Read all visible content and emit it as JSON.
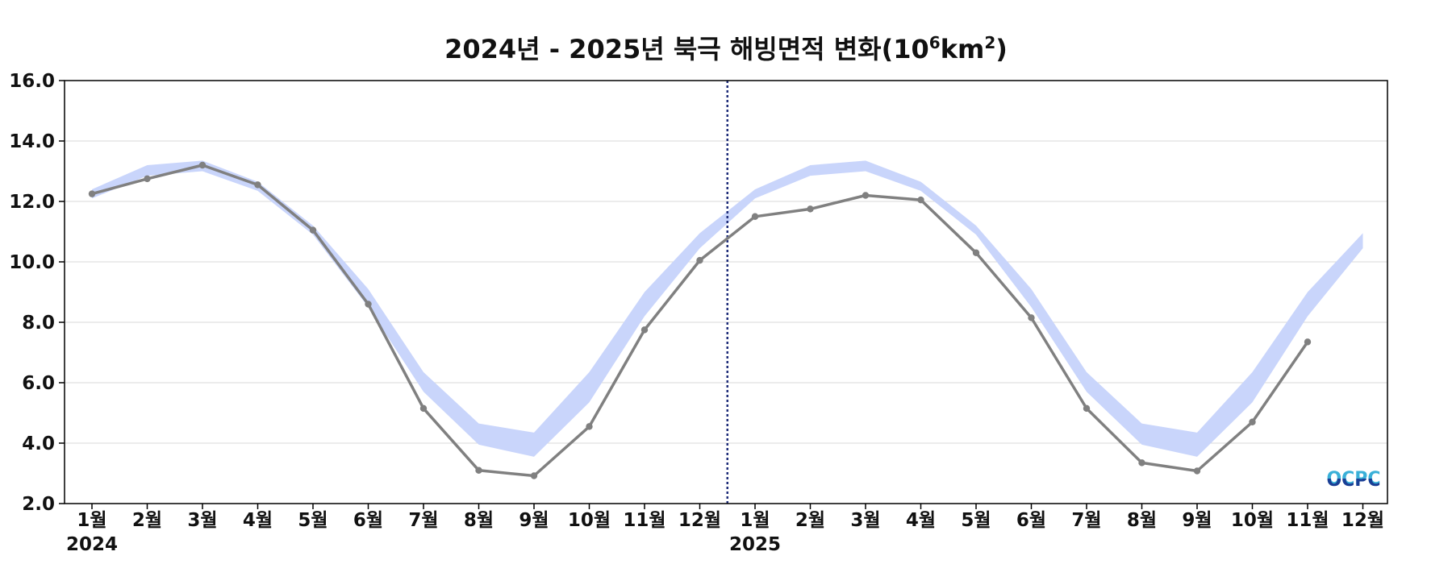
{
  "chart_data": {
    "type": "line",
    "title": {
      "text": "2024년 - 2025년 북극 해빙면적 변화(10",
      "exp1": "6",
      "unit": "km",
      "exp2": "2",
      "close": ")"
    },
    "ylim": [
      2.0,
      16.0
    ],
    "y_ticks": [
      "2.0",
      "4.0",
      "6.0",
      "8.0",
      "10.0",
      "12.0",
      "14.0",
      "16.0"
    ],
    "x_tick_labels": [
      "1월",
      "2월",
      "3월",
      "4월",
      "5월",
      "6월",
      "7월",
      "8월",
      "9월",
      "10월",
      "11월",
      "12월",
      "1월",
      "2월",
      "3월",
      "4월",
      "5월",
      "6월",
      "7월",
      "8월",
      "9월",
      "10월",
      "11월",
      "12월"
    ],
    "year_labels": [
      {
        "text": "2024",
        "month_index": 0
      },
      {
        "text": "2025",
        "month_index": 12
      }
    ],
    "year_divider_month_index": 11.5,
    "grid": true,
    "range_band": {
      "upper": [
        12.4,
        13.2,
        13.35,
        12.65,
        11.2,
        9.1,
        6.35,
        4.65,
        4.35,
        6.35,
        9.0,
        10.95,
        12.4,
        13.2,
        13.35,
        12.65,
        11.2,
        9.1,
        6.35,
        4.65,
        4.35,
        6.35,
        9.0,
        10.95
      ],
      "lower": [
        12.1,
        12.85,
        13.0,
        12.35,
        10.9,
        8.5,
        5.7,
        3.95,
        3.55,
        5.35,
        8.2,
        10.45,
        12.1,
        12.85,
        13.0,
        12.35,
        10.9,
        8.5,
        5.7,
        3.95,
        3.55,
        5.35,
        8.2,
        10.45
      ],
      "color": "#c9d5fb"
    },
    "series": [
      {
        "values": [
          12.25,
          12.75,
          13.2,
          12.55,
          11.05,
          8.6,
          5.15,
          3.1,
          2.92,
          4.55,
          7.75,
          10.05,
          11.5,
          11.75,
          12.2,
          12.05,
          10.3,
          8.15,
          5.15,
          3.35,
          3.08,
          4.7,
          7.35
        ],
        "color": "#808080"
      }
    ],
    "divider_color": "#1f2d7a"
  },
  "logo": {
    "text": "OCPC",
    "color_top": "#3ab0d8",
    "color_bottom": "#1a3f95"
  }
}
